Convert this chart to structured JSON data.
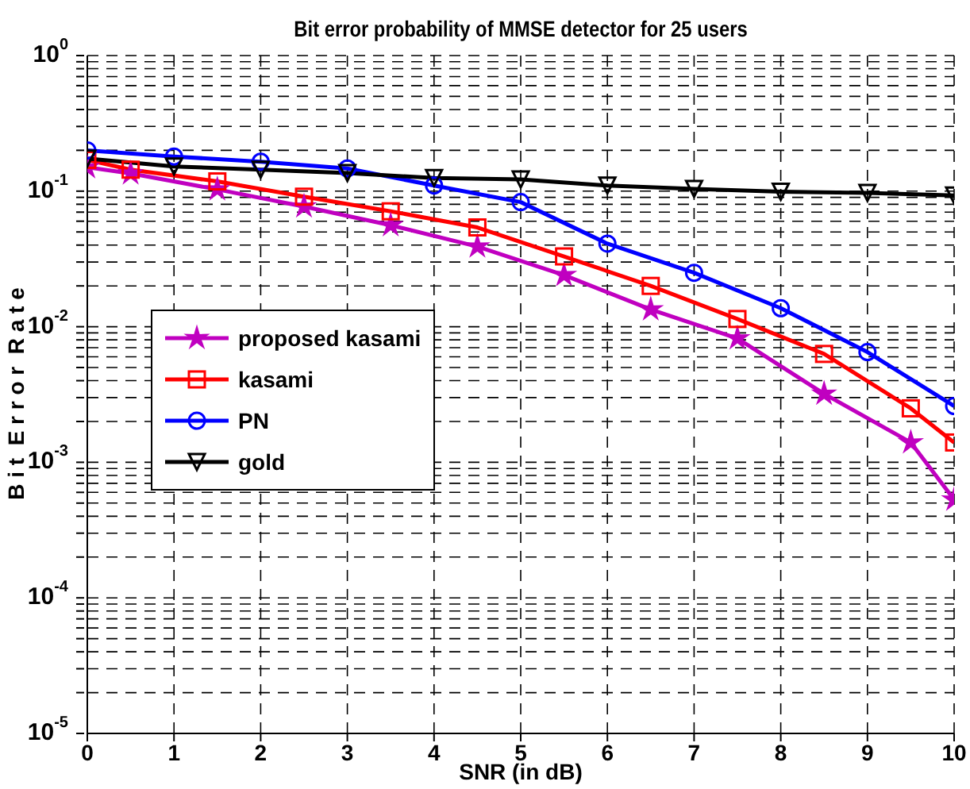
{
  "chart_data": {
    "type": "line",
    "title": "Bit error probability of MMSE detector  for 25 users",
    "xlabel": "SNR (in dB)",
    "ylabel": "B i t  E r r o r  R a t e",
    "log": "y",
    "grid": true,
    "legend": "center left",
    "line_style": "solid",
    "xlim": [
      0,
      10
    ],
    "xticks": [
      0,
      1,
      2,
      3,
      4,
      5,
      6,
      7,
      8,
      9,
      10
    ],
    "ylim": [
      1e-05,
      1
    ],
    "yticks": [
      {
        "value": 1e-05,
        "label": "10$^{-5}$"
      },
      {
        "value": 2e-05,
        "label": null
      },
      {
        "value": 3e-05,
        "label": null
      },
      {
        "value": 4e-05,
        "label": null
      },
      {
        "value": 5e-05,
        "label": null
      },
      {
        "value": 6e-05,
        "label": null
      },
      {
        "value": 7e-05,
        "label": null
      },
      {
        "value": 8e-05,
        "label": null
      },
      {
        "value": 9e-05,
        "label": null
      },
      {
        "value": 0.0001,
        "label": "10$^{-4}$"
      },
      {
        "value": 0.0002,
        "label": null
      },
      {
        "value": 0.0003,
        "label": null
      },
      {
        "value": 0.0004,
        "label": null
      },
      {
        "value": 0.0005,
        "label": null
      },
      {
        "value": 0.0006,
        "label": null
      },
      {
        "value": 0.0007,
        "label": null
      },
      {
        "value": 0.0008,
        "label": null
      },
      {
        "value": 0.0009,
        "label": null
      },
      {
        "value": 0.001,
        "label": "10$^{-3}$"
      },
      {
        "value": 0.002,
        "label": null
      },
      {
        "value": 0.003,
        "label": null
      },
      {
        "value": 0.004,
        "label": null
      },
      {
        "value": 0.005,
        "label": null
      },
      {
        "value": 0.006,
        "label": null
      },
      {
        "value": 0.007,
        "label": null
      },
      {
        "value": 0.008,
        "label": null
      },
      {
        "value": 0.009,
        "label": null
      },
      {
        "value": 0.01,
        "label": "10$^{-2}$"
      },
      {
        "value": 0.02,
        "label": null
      },
      {
        "value": 0.03,
        "label": null
      },
      {
        "value": 0.04,
        "label": null
      },
      {
        "value": 0.05,
        "label": null
      },
      {
        "value": 0.06,
        "label": null
      },
      {
        "value": 0.07,
        "label": null
      },
      {
        "value": 0.08,
        "label": null
      },
      {
        "value": 0.09,
        "label": null
      },
      {
        "value": 0.1,
        "label": "10$^{-1}$"
      },
      {
        "value": 0.2,
        "label": null
      },
      {
        "value": 0.3,
        "label": null
      },
      {
        "value": 0.4,
        "label": null
      },
      {
        "value": 0.5,
        "label": null
      },
      {
        "value": 0.6,
        "label": null
      },
      {
        "value": 0.7,
        "label": null
      },
      {
        "value": 0.8,
        "label": null
      },
      {
        "value": 0.9,
        "label": null
      },
      {
        "value": 1,
        "label": "10$^{0}$"
      }
    ],
    "series": [
      {
        "name": "proposed kasami",
        "color": "#c000c0",
        "marker": "star",
        "x": [
          0,
          0.5,
          1.5,
          2.5,
          3.5,
          4.5,
          5.5,
          6.5,
          7.5,
          8.5,
          9.5,
          10
        ],
        "values": [
          0.15,
          0.135,
          0.103,
          0.077,
          0.056,
          0.039,
          0.024,
          0.0134,
          0.0082,
          0.0032,
          0.0014,
          0.00053
        ]
      },
      {
        "name": "kasami",
        "color": "#ff0000",
        "marker": "square",
        "x": [
          0,
          0.5,
          1.5,
          2.5,
          3.5,
          4.5,
          5.5,
          6.5,
          7.5,
          8.5,
          9.5,
          10
        ],
        "values": [
          0.17,
          0.144,
          0.118,
          0.091,
          0.071,
          0.054,
          0.033,
          0.02,
          0.0114,
          0.0063,
          0.0025,
          0.0014
        ]
      },
      {
        "name": "PN",
        "color": "#0000ff",
        "marker": "circle",
        "x": [
          0,
          1,
          2,
          3,
          4,
          5,
          6,
          7,
          8,
          9,
          10
        ],
        "values": [
          0.2,
          0.18,
          0.165,
          0.147,
          0.11,
          0.083,
          0.041,
          0.025,
          0.0137,
          0.0065,
          0.0026
        ]
      },
      {
        "name": "gold",
        "color": "#000000",
        "marker": "triangle",
        "x": [
          0,
          1,
          2,
          3,
          4,
          5,
          6,
          7,
          8,
          9,
          10
        ],
        "values": [
          0.174,
          0.152,
          0.144,
          0.136,
          0.125,
          0.122,
          0.11,
          0.104,
          0.099,
          0.097,
          0.093
        ]
      }
    ]
  }
}
